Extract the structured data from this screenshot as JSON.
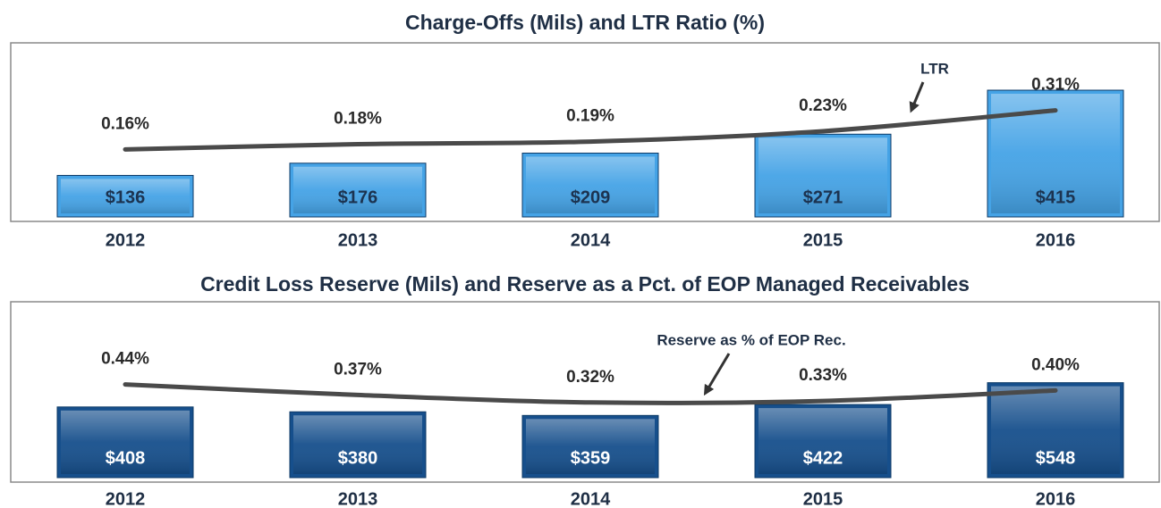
{
  "chart_data": [
    {
      "type": "bar",
      "title": "Charge-Offs (Mils) and LTR Ratio (%)",
      "categories": [
        "2012",
        "2013",
        "2014",
        "2015",
        "2016"
      ],
      "series": [
        {
          "color": "#45a3e6",
          "values": [
            136,
            176,
            209,
            271,
            415
          ],
          "value_labels": [
            "$136",
            "$176",
            "$209",
            "$271",
            "$415"
          ]
        },
        {
          "color": "#4a4a4a",
          "axis": "y2",
          "values": [
            0.16,
            0.18,
            0.19,
            0.23,
            0.31
          ],
          "value_labels": [
            "0.16%",
            "0.18%",
            "0.19%",
            "0.23%",
            "0.31%"
          ]
        }
      ],
      "ylim": [
        0,
        570
      ],
      "y2lim": [
        -0.1,
        0.57
      ],
      "annotation": "LTR"
    },
    {
      "type": "bar",
      "title": "Credit Loss Reserve (Mils) and Reserve as a Pct. of EOP Managed Receivables",
      "categories": [
        "2012",
        "2013",
        "2014",
        "2015",
        "2016"
      ],
      "series": [
        {
          "color": "#164f8c",
          "values": [
            408,
            380,
            359,
            422,
            548
          ],
          "value_labels": [
            "$408",
            "$380",
            "$359",
            "$422",
            "$548"
          ]
        },
        {
          "color": "#4a4a4a",
          "axis": "y2",
          "values": [
            0.44,
            0.37,
            0.32,
            0.33,
            0.4
          ],
          "value_labels": [
            "0.44%",
            "0.37%",
            "0.32%",
            "0.33%",
            "0.40%"
          ]
        }
      ],
      "ylim": [
        0,
        1015
      ],
      "y2lim": [
        -0.18,
        0.99
      ],
      "annotation": "Reserve as % of EOP Rec."
    }
  ]
}
